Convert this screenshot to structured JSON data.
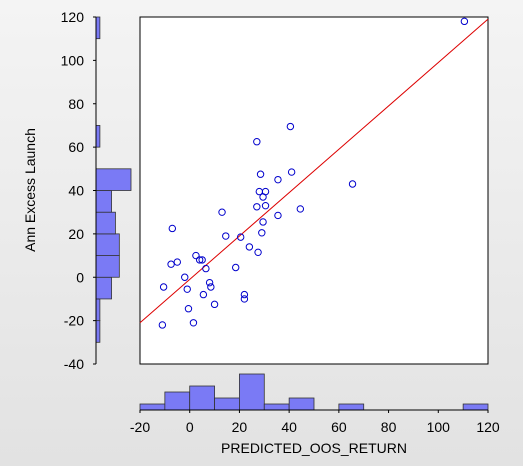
{
  "chart_data": {
    "type": "scatter",
    "xlabel": "PREDICTED_OOS_RETURN",
    "ylabel": "Ann Excess Launch",
    "xlim": [
      -20,
      120
    ],
    "ylim": [
      -40,
      120
    ],
    "xticks": [
      -20,
      0,
      20,
      40,
      60,
      80,
      100,
      120
    ],
    "yticks": [
      -40,
      -20,
      0,
      20,
      40,
      60,
      80,
      100,
      120
    ],
    "grid": false,
    "point_color": "#0000cc",
    "fit_line_color": "#dd0000",
    "histogram_color": "#7a7af5",
    "points": [
      {
        "x": 110.5,
        "y": 118.0
      },
      {
        "x": 65.5,
        "y": 43.0
      },
      {
        "x": 40.5,
        "y": 69.5
      },
      {
        "x": 41.0,
        "y": 48.5
      },
      {
        "x": 27.0,
        "y": 62.5
      },
      {
        "x": 35.5,
        "y": 45.0
      },
      {
        "x": 28.5,
        "y": 47.5
      },
      {
        "x": 28.0,
        "y": 39.5
      },
      {
        "x": 30.5,
        "y": 39.5
      },
      {
        "x": 29.5,
        "y": 37.0
      },
      {
        "x": 30.5,
        "y": 33.0
      },
      {
        "x": 27.0,
        "y": 32.5
      },
      {
        "x": 44.5,
        "y": 31.5
      },
      {
        "x": 13.0,
        "y": 30.0
      },
      {
        "x": 35.5,
        "y": 28.5
      },
      {
        "x": 29.5,
        "y": 25.5
      },
      {
        "x": -7.0,
        "y": 22.5
      },
      {
        "x": 29.0,
        "y": 20.5
      },
      {
        "x": 14.5,
        "y": 19.0
      },
      {
        "x": 20.5,
        "y": 18.5
      },
      {
        "x": 24.0,
        "y": 14.0
      },
      {
        "x": 27.5,
        "y": 11.5
      },
      {
        "x": 2.5,
        "y": 10.0
      },
      {
        "x": 4.0,
        "y": 8.0
      },
      {
        "x": 5.0,
        "y": 8.0
      },
      {
        "x": -5.0,
        "y": 7.0
      },
      {
        "x": -7.5,
        "y": 6.0
      },
      {
        "x": 6.5,
        "y": 4.0
      },
      {
        "x": 18.5,
        "y": 4.5
      },
      {
        "x": -2.0,
        "y": 0.0
      },
      {
        "x": 8.0,
        "y": -2.5
      },
      {
        "x": 8.5,
        "y": -4.5
      },
      {
        "x": -10.5,
        "y": -4.5
      },
      {
        "x": -1.0,
        "y": -5.5
      },
      {
        "x": 5.5,
        "y": -8.0
      },
      {
        "x": 22.0,
        "y": -8.0
      },
      {
        "x": 22.0,
        "y": -10.0
      },
      {
        "x": 10.0,
        "y": -12.5
      },
      {
        "x": -0.5,
        "y": -14.5
      },
      {
        "x": 1.5,
        "y": -21.0
      },
      {
        "x": -11.0,
        "y": -22.0
      }
    ],
    "fit_line": {
      "x": [
        -20,
        120
      ],
      "y": [
        -21,
        119
      ]
    },
    "x_histogram": {
      "bin_edges": [
        -20,
        -10,
        0,
        10,
        20,
        30,
        40,
        50,
        60,
        70,
        80,
        90,
        100,
        110,
        120
      ],
      "counts": [
        1,
        3,
        4,
        2,
        6,
        1,
        2,
        0,
        1,
        0,
        0,
        0,
        0,
        1
      ]
    },
    "y_histogram": {
      "bin_edges": [
        -30,
        -20,
        -10,
        0,
        10,
        20,
        30,
        40,
        50,
        60,
        70,
        80,
        90,
        100,
        110,
        120
      ],
      "counts": [
        1,
        1,
        4,
        6,
        6,
        5,
        4,
        9,
        0,
        1,
        0,
        0,
        0,
        0,
        1
      ]
    }
  }
}
